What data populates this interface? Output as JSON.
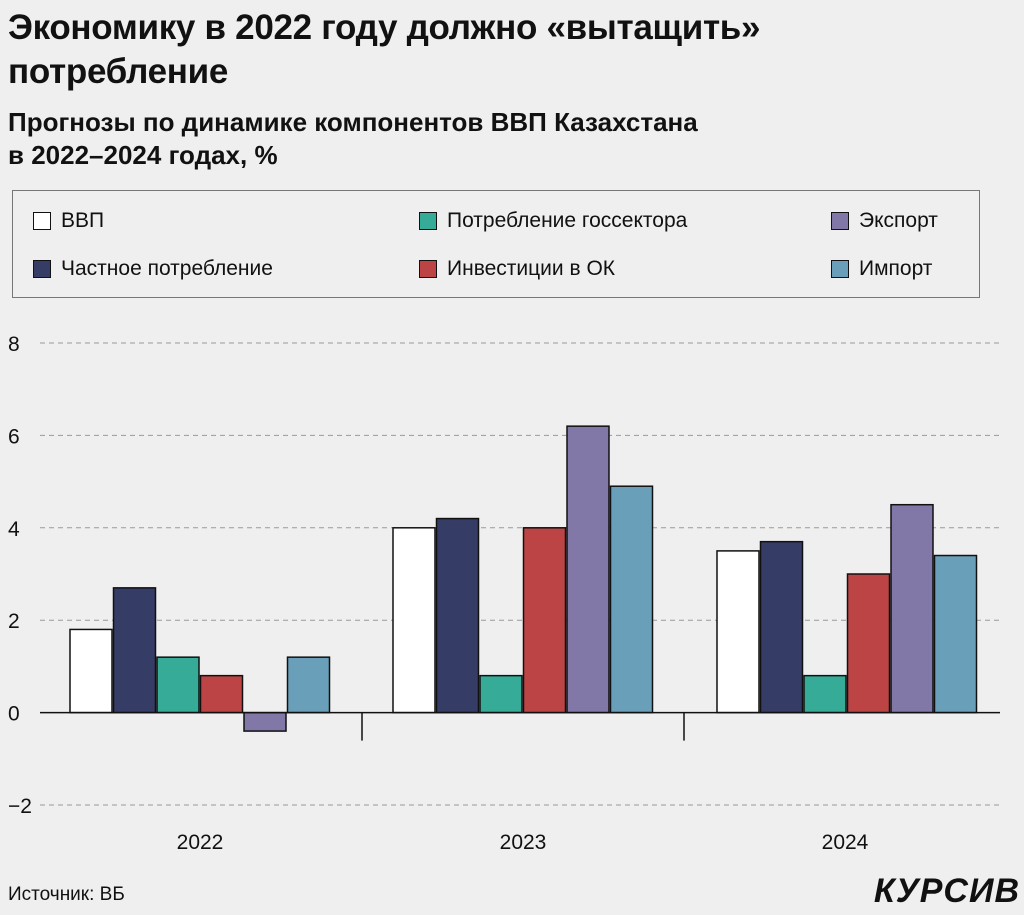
{
  "header": {
    "title_line1": "Экономику в 2022 году должно «вытащить»",
    "title_line2": "потребление",
    "subtitle_line1": "Прогнозы по динамике компонентов ВВП Казахстана",
    "subtitle_line2": "в 2022–2024 годах, %"
  },
  "footer": {
    "source": "Источник: ВБ",
    "logo": "КУРСИВ"
  },
  "chart_data": {
    "type": "bar",
    "title": "Экономику в 2022 году должно «вытащить» потребление",
    "subtitle": "Прогнозы по динамике компонентов ВВП Казахстана в 2022–2024 годах, %",
    "categories": [
      "2022",
      "2023",
      "2024"
    ],
    "ylim": [
      -2,
      8
    ],
    "yticks": [
      "−2",
      "0",
      "2",
      "4",
      "6",
      "8"
    ],
    "ytick_values": [
      -2,
      0,
      2,
      4,
      6,
      8
    ],
    "grid": true,
    "legend_position": "top",
    "series": [
      {
        "name": "ВВП",
        "color": "#ffffff",
        "values": [
          1.8,
          4.0,
          3.5
        ]
      },
      {
        "name": "Частное потребление",
        "color": "#353c66",
        "values": [
          2.7,
          4.2,
          3.7
        ]
      },
      {
        "name": "Потребление госсектора",
        "color": "#35ab98",
        "values": [
          1.2,
          0.8,
          0.8
        ]
      },
      {
        "name": "Инвестиции в ОК",
        "color": "#bd4444",
        "values": [
          0.8,
          4.0,
          3.0
        ]
      },
      {
        "name": "Экспорт",
        "color": "#8278a8",
        "values": [
          -0.4,
          6.2,
          4.5
        ]
      },
      {
        "name": "Импорт",
        "color": "#6a9fb9",
        "values": [
          1.2,
          4.9,
          3.4
        ]
      }
    ]
  }
}
